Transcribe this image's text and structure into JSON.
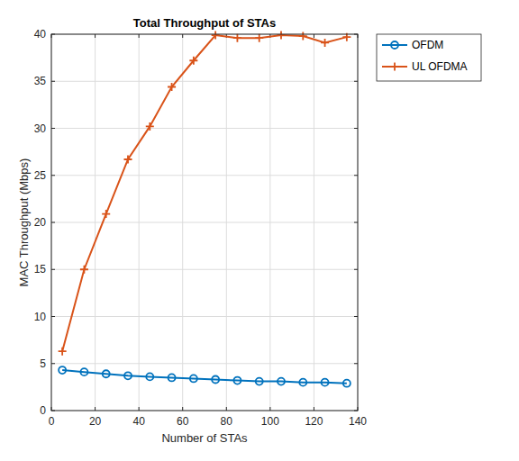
{
  "chart_data": {
    "type": "line",
    "title": "Total Throughput of STAs",
    "x_label": "Number of STAs",
    "y_label": "MAC Throughput (Mbps)",
    "x": [
      5,
      15,
      25,
      35,
      45,
      55,
      65,
      75,
      85,
      95,
      105,
      115,
      125,
      135
    ],
    "series": [
      {
        "name": "OFDM",
        "color": "#0072bd",
        "marker": "circle",
        "line_style": "solid",
        "values": [
          4.3,
          4.1,
          3.9,
          3.7,
          3.6,
          3.5,
          3.4,
          3.3,
          3.2,
          3.1,
          3.1,
          3.0,
          3.0,
          2.9
        ]
      },
      {
        "name": "UL OFDMA",
        "color": "#d95319",
        "marker": "plus",
        "line_style": "solid",
        "values": [
          6.3,
          15.0,
          20.9,
          26.7,
          30.2,
          34.4,
          37.2,
          39.9,
          39.6,
          39.6,
          39.9,
          39.8,
          39.1,
          39.7
        ]
      }
    ],
    "xlim": [
      0,
      140
    ],
    "xticks": [
      0,
      20,
      40,
      60,
      80,
      100,
      120,
      140
    ],
    "ylim": [
      0,
      40
    ],
    "yticks": [
      0,
      5,
      10,
      15,
      20,
      25,
      30,
      35,
      40
    ],
    "grid": true,
    "legend": "northeastoutside"
  }
}
